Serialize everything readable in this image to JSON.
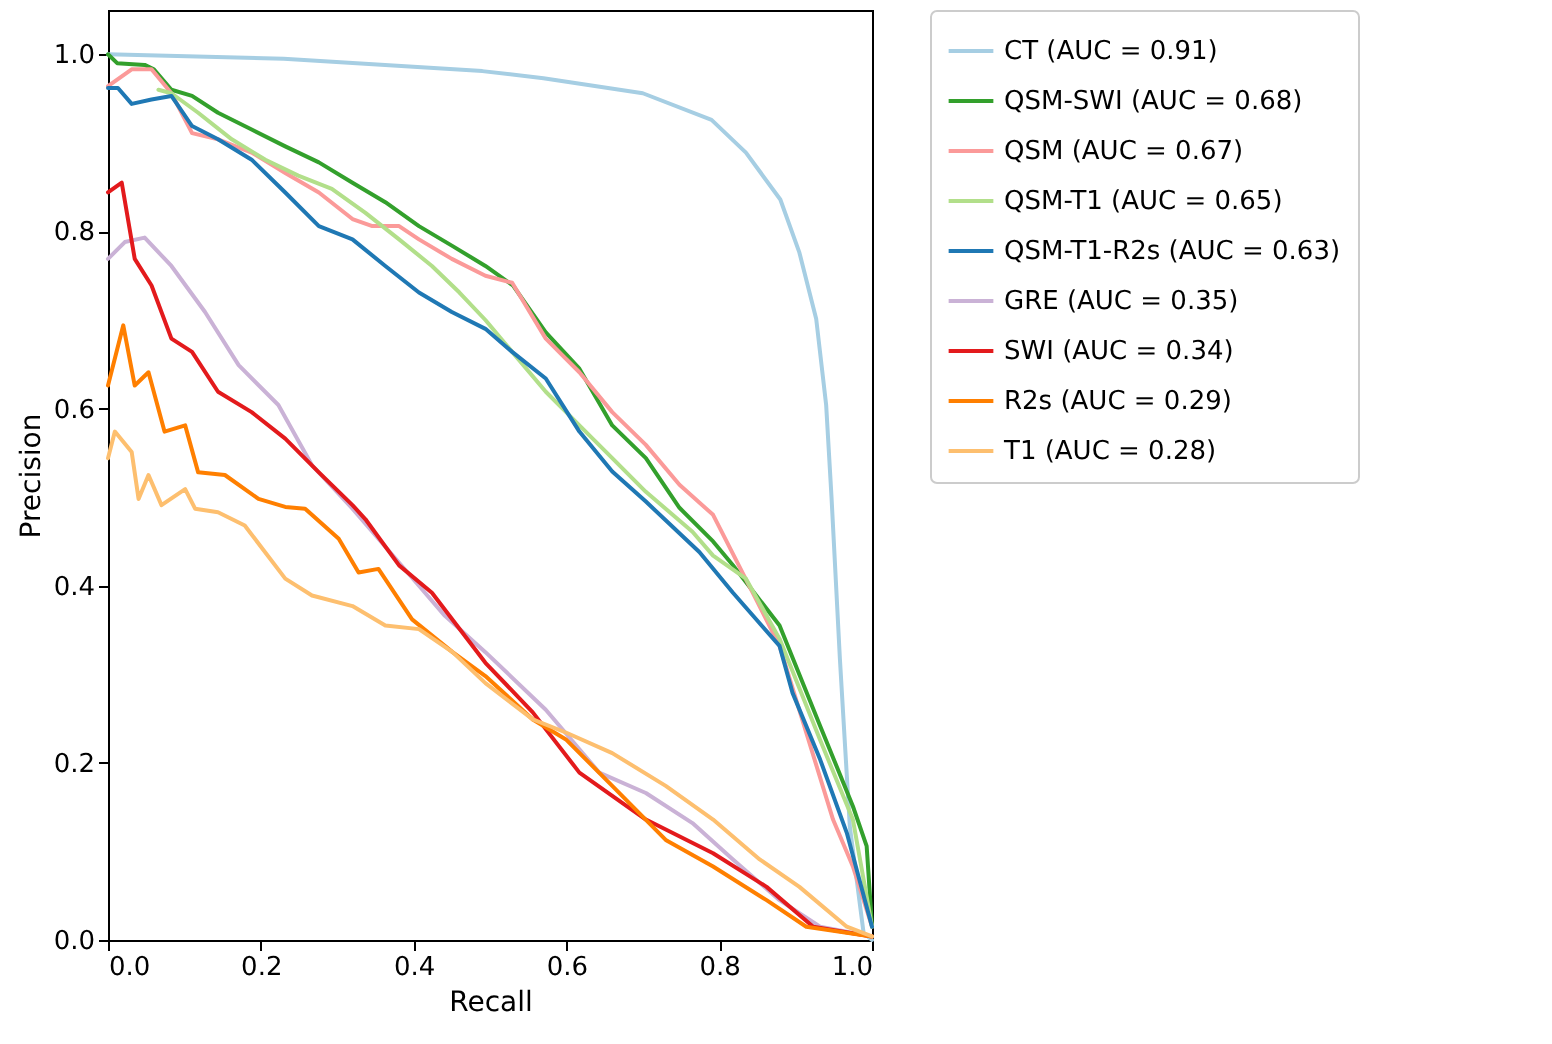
{
  "chart_data": {
    "type": "line",
    "xlabel": "Recall",
    "ylabel": "Precision",
    "xlim": [
      0,
      1
    ],
    "ylim": [
      0,
      1.05
    ],
    "xticks": [
      {
        "value": 0,
        "label": "0.0"
      },
      {
        "value": 0.2,
        "label": "0.2"
      },
      {
        "value": 0.4,
        "label": "0.4"
      },
      {
        "value": 0.6,
        "label": "0.6"
      },
      {
        "value": 0.8,
        "label": "0.8"
      },
      {
        "value": 1,
        "label": "1.0"
      }
    ],
    "yticks": [
      {
        "value": 0,
        "label": "0.0"
      },
      {
        "value": 0.2,
        "label": "0.2"
      },
      {
        "value": 0.4,
        "label": "0.4"
      },
      {
        "value": 0.6,
        "label": "0.6"
      },
      {
        "value": 0.8,
        "label": "0.8"
      },
      {
        "value": 1,
        "label": "1.0"
      }
    ],
    "grid": false,
    "legend": "right",
    "marker": "none",
    "line_style": "solid",
    "series": [
      {
        "name": "CT (AUC = 0.91)",
        "color": "#a6cee3",
        "x": [
          0,
          0.23,
          0.49,
          0.57,
          0.7,
          0.79,
          0.835,
          0.88,
          0.905,
          0.927,
          0.94,
          0.947,
          0.958,
          0.971,
          0.989,
          1.0
        ],
        "values": [
          1.0,
          0.995,
          0.981,
          0.973,
          0.956,
          0.926,
          0.889,
          0.836,
          0.776,
          0.701,
          0.604,
          0.5,
          0.317,
          0.128,
          0.008,
          0.0
        ]
      },
      {
        "name": "QSM-SWI (AUC = 0.68)",
        "color": "#33a02c",
        "x": [
          0,
          0.012,
          0.048,
          0.06,
          0.083,
          0.11,
          0.144,
          0.188,
          0.232,
          0.276,
          0.32,
          0.363,
          0.407,
          0.45,
          0.494,
          0.53,
          0.573,
          0.617,
          0.66,
          0.704,
          0.748,
          0.792,
          0.818,
          0.879,
          0.932,
          0.975,
          0.993,
          1.0
        ],
        "values": [
          1.0,
          0.99,
          0.988,
          0.983,
          0.96,
          0.953,
          0.934,
          0.915,
          0.896,
          0.878,
          0.855,
          0.833,
          0.806,
          0.784,
          0.761,
          0.739,
          0.686,
          0.645,
          0.581,
          0.544,
          0.488,
          0.45,
          0.423,
          0.355,
          0.242,
          0.151,
          0.106,
          0.015
        ]
      },
      {
        "name": "QSM (AUC = 0.67)",
        "color": "#fb9a99",
        "x": [
          0,
          0.031,
          0.057,
          0.083,
          0.11,
          0.144,
          0.188,
          0.232,
          0.276,
          0.32,
          0.346,
          0.381,
          0.407,
          0.45,
          0.494,
          0.529,
          0.573,
          0.617,
          0.66,
          0.704,
          0.748,
          0.792,
          0.844,
          0.879,
          0.949,
          0.975,
          1.0
        ],
        "values": [
          0.964,
          0.983,
          0.983,
          0.956,
          0.911,
          0.904,
          0.889,
          0.866,
          0.844,
          0.814,
          0.806,
          0.806,
          0.791,
          0.769,
          0.75,
          0.742,
          0.679,
          0.641,
          0.596,
          0.559,
          0.514,
          0.48,
          0.392,
          0.332,
          0.136,
          0.083,
          0.015
        ]
      },
      {
        "name": "QSM-T1 (AUC = 0.65)",
        "color": "#b2df8a",
        "x": [
          0.066,
          0.083,
          0.118,
          0.162,
          0.206,
          0.249,
          0.293,
          0.337,
          0.381,
          0.424,
          0.46,
          0.494,
          0.529,
          0.573,
          0.617,
          0.66,
          0.704,
          0.765,
          0.792,
          0.835,
          0.879,
          0.932,
          0.975,
          1.0
        ],
        "values": [
          0.96,
          0.956,
          0.934,
          0.904,
          0.881,
          0.863,
          0.848,
          0.821,
          0.791,
          0.761,
          0.731,
          0.7,
          0.664,
          0.619,
          0.581,
          0.544,
          0.506,
          0.461,
          0.434,
          0.408,
          0.34,
          0.226,
          0.136,
          0.015
        ]
      },
      {
        "name": "QSM-T1-R2s (AUC = 0.63)",
        "color": "#1f78b4",
        "x": [
          0,
          0.013,
          0.031,
          0.057,
          0.083,
          0.11,
          0.144,
          0.188,
          0.232,
          0.276,
          0.32,
          0.363,
          0.407,
          0.45,
          0.494,
          0.529,
          0.573,
          0.617,
          0.66,
          0.704,
          0.774,
          0.818,
          0.879,
          0.896,
          0.932,
          0.967,
          1.0
        ],
        "values": [
          0.962,
          0.962,
          0.944,
          0.949,
          0.953,
          0.919,
          0.904,
          0.881,
          0.844,
          0.806,
          0.791,
          0.761,
          0.731,
          0.709,
          0.69,
          0.664,
          0.634,
          0.574,
          0.529,
          0.495,
          0.438,
          0.392,
          0.332,
          0.279,
          0.204,
          0.121,
          0.015
        ]
      },
      {
        "name": "GRE (AUC = 0.35)",
        "color": "#cab2d6",
        "x": [
          0,
          0.022,
          0.048,
          0.083,
          0.127,
          0.171,
          0.223,
          0.267,
          0.32,
          0.407,
          0.441,
          0.494,
          0.573,
          0.643,
          0.704,
          0.765,
          0.818,
          0.879,
          0.932,
          1.0
        ],
        "values": [
          0.769,
          0.788,
          0.793,
          0.761,
          0.709,
          0.649,
          0.604,
          0.536,
          0.487,
          0.4,
          0.366,
          0.325,
          0.26,
          0.189,
          0.166,
          0.132,
          0.091,
          0.045,
          0.015,
          0.004
        ]
      },
      {
        "name": "SWI (AUC = 0.34)",
        "color": "#e31a1c",
        "x": [
          0,
          0.018,
          0.035,
          0.057,
          0.083,
          0.11,
          0.144,
          0.188,
          0.232,
          0.276,
          0.32,
          0.337,
          0.381,
          0.424,
          0.494,
          0.556,
          0.617,
          0.704,
          0.792,
          0.862,
          0.923,
          1.0
        ],
        "values": [
          0.844,
          0.855,
          0.769,
          0.739,
          0.679,
          0.664,
          0.619,
          0.596,
          0.566,
          0.528,
          0.491,
          0.475,
          0.423,
          0.392,
          0.313,
          0.257,
          0.189,
          0.136,
          0.098,
          0.06,
          0.015,
          0.004
        ]
      },
      {
        "name": "R2s (AUC = 0.29)",
        "color": "#ff7f00",
        "x": [
          0,
          0.02,
          0.035,
          0.053,
          0.074,
          0.101,
          0.118,
          0.153,
          0.197,
          0.232,
          0.258,
          0.302,
          0.328,
          0.354,
          0.398,
          0.451,
          0.494,
          0.556,
          0.6,
          0.66,
          0.73,
          0.792,
          0.862,
          0.914,
          1.0
        ],
        "values": [
          0.626,
          0.694,
          0.626,
          0.641,
          0.574,
          0.581,
          0.528,
          0.525,
          0.498,
          0.489,
          0.487,
          0.453,
          0.415,
          0.419,
          0.362,
          0.325,
          0.298,
          0.249,
          0.226,
          0.174,
          0.113,
          0.083,
          0.045,
          0.015,
          0.004
        ]
      },
      {
        "name": "T1 (AUC = 0.28)",
        "color": "#fdbf6f",
        "x": [
          0,
          0.009,
          0.031,
          0.04,
          0.053,
          0.07,
          0.101,
          0.114,
          0.144,
          0.179,
          0.232,
          0.267,
          0.32,
          0.363,
          0.407,
          0.451,
          0.494,
          0.556,
          0.6,
          0.66,
          0.73,
          0.792,
          0.853,
          0.905,
          0.967,
          1.0
        ],
        "values": [
          0.544,
          0.574,
          0.551,
          0.498,
          0.525,
          0.491,
          0.509,
          0.487,
          0.483,
          0.468,
          0.408,
          0.389,
          0.377,
          0.355,
          0.351,
          0.325,
          0.29,
          0.249,
          0.234,
          0.211,
          0.174,
          0.136,
          0.091,
          0.06,
          0.015,
          0.004
        ]
      }
    ]
  }
}
